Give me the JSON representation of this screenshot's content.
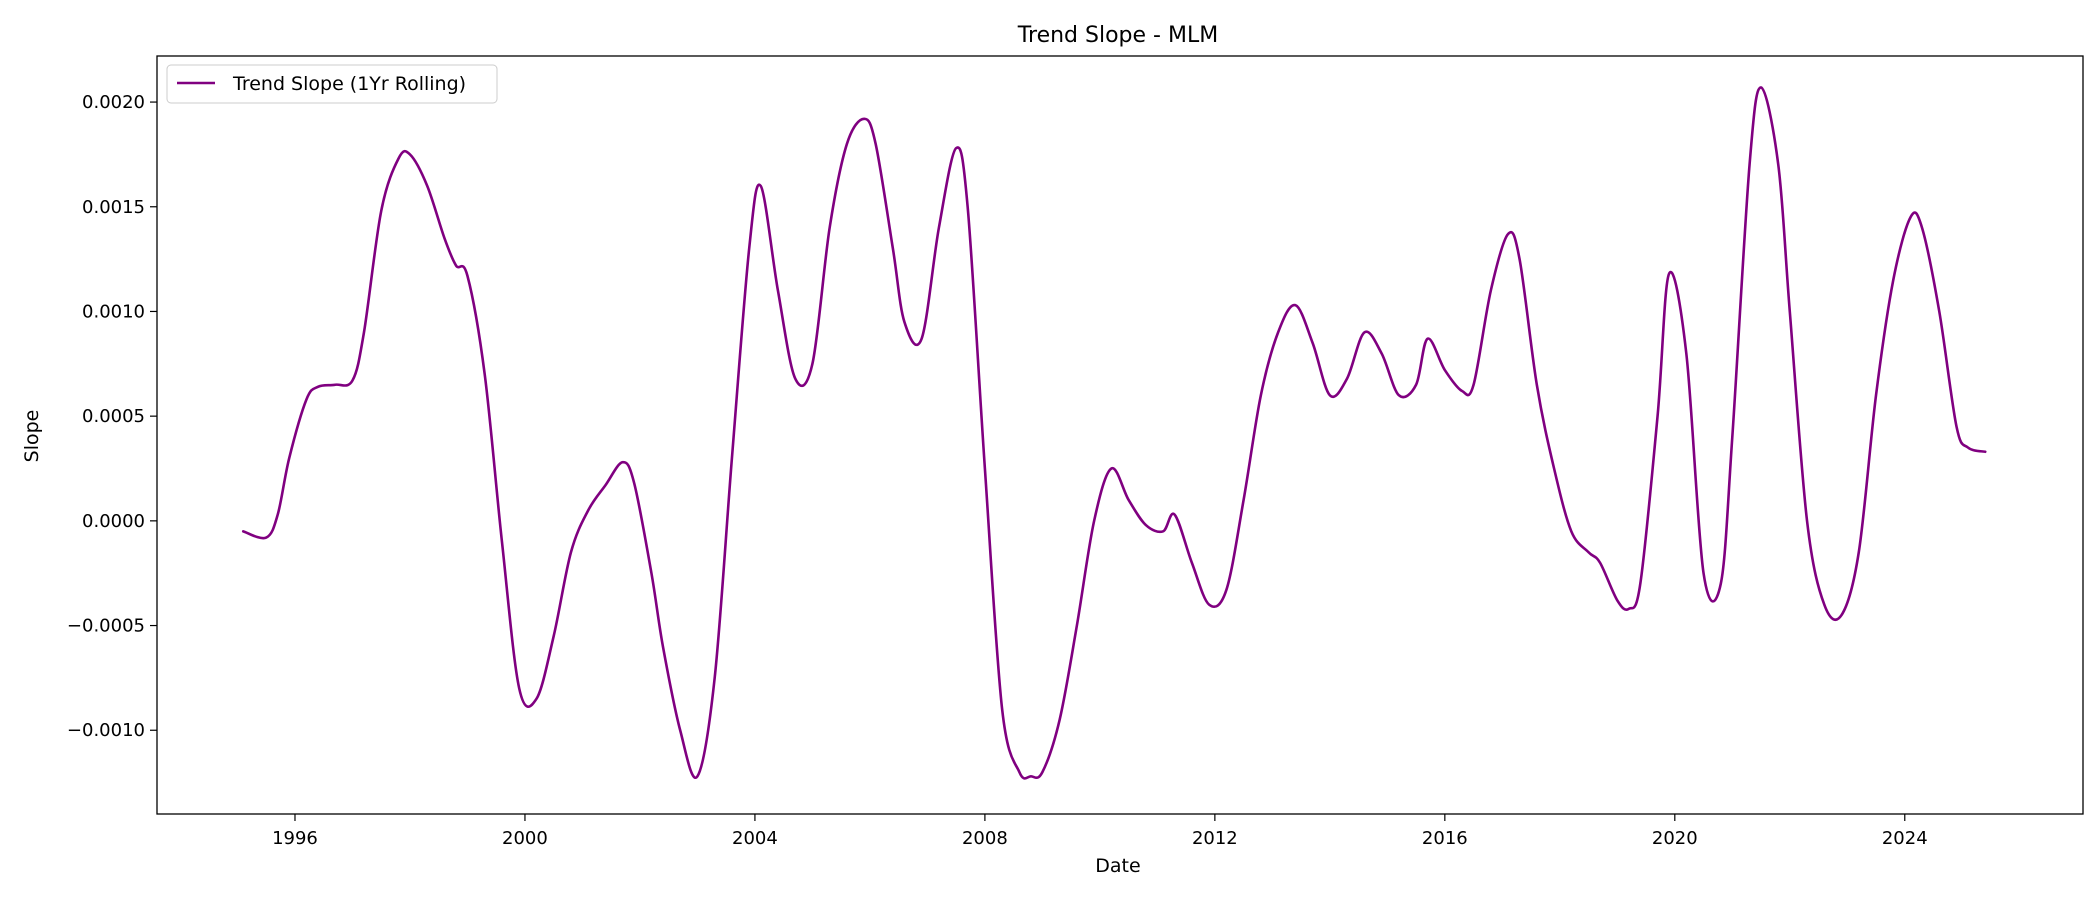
{
  "chart_data": {
    "type": "line",
    "title": "Trend Slope - MLM",
    "xlabel": "Date",
    "ylabel": "Slope",
    "xlim": [
      1993.6,
      2027.1
    ],
    "ylim": [
      -0.0014,
      0.00222
    ],
    "x_ticks": [
      1996,
      2000,
      2004,
      2008,
      2012,
      2016,
      2020,
      2024
    ],
    "x_tick_labels": [
      "1996",
      "2000",
      "2004",
      "2008",
      "2012",
      "2016",
      "2020",
      "2024"
    ],
    "y_ticks": [
      -0.001,
      -0.0005,
      0.0,
      0.0005,
      0.001,
      0.0015,
      0.002
    ],
    "y_tick_labels": [
      "−0.0010",
      "−0.0005",
      "0.0000",
      "0.0005",
      "0.0010",
      "0.0015",
      "0.0020"
    ],
    "grid": false,
    "legend": {
      "placement": "top-left",
      "entries": [
        "Trend Slope (1Yr Rolling)"
      ]
    },
    "series": [
      {
        "name": "Trend Slope (1Yr Rolling)",
        "color": "#800080",
        "x": [
          1995.1,
          1995.5,
          1995.7,
          1995.9,
          1996.2,
          1996.4,
          1996.7,
          1997.0,
          1997.2,
          1997.5,
          1997.8,
          1998.0,
          1998.3,
          1998.6,
          1998.8,
          1999.0,
          1999.3,
          1999.6,
          1999.9,
          2000.2,
          2000.5,
          2000.8,
          2001.1,
          2001.4,
          2001.7,
          2001.9,
          2002.2,
          2002.4,
          2002.7,
          2003.0,
          2003.3,
          2003.6,
          2003.9,
          2004.1,
          2004.4,
          2004.7,
          2005.0,
          2005.3,
          2005.6,
          2005.9,
          2006.1,
          2006.4,
          2006.6,
          2006.9,
          2007.2,
          2007.5,
          2007.7,
          2008.0,
          2008.3,
          2008.6,
          2008.8,
          2009.0,
          2009.3,
          2009.6,
          2009.9,
          2010.2,
          2010.5,
          2010.8,
          2011.1,
          2011.3,
          2011.6,
          2011.9,
          2012.2,
          2012.5,
          2012.8,
          2013.1,
          2013.4,
          2013.7,
          2014.0,
          2014.3,
          2014.6,
          2014.9,
          2015.2,
          2015.5,
          2015.7,
          2016.0,
          2016.3,
          2016.5,
          2016.8,
          2017.1,
          2017.3,
          2017.6,
          2017.9,
          2018.2,
          2018.5,
          2018.7,
          2019.0,
          2019.2,
          2019.4,
          2019.7,
          2019.9,
          2020.2,
          2020.5,
          2020.8,
          2021.0,
          2021.3,
          2021.5,
          2021.8,
          2022.0,
          2022.3,
          2022.6,
          2022.9,
          2023.2,
          2023.5,
          2023.8,
          2024.1,
          2024.3,
          2024.6,
          2024.9,
          2025.1,
          2025.4
        ],
        "y": [
          -5e-05,
          -8e-05,
          3e-05,
          0.0003,
          0.00058,
          0.00064,
          0.00065,
          0.00067,
          0.0009,
          0.00148,
          0.00173,
          0.00175,
          0.0016,
          0.00135,
          0.00122,
          0.00117,
          0.0007,
          -0.0001,
          -0.0008,
          -0.00085,
          -0.00055,
          -0.00015,
          5e-05,
          0.00017,
          0.00028,
          0.00018,
          -0.00025,
          -0.0006,
          -0.001,
          -0.00122,
          -0.00075,
          0.0003,
          0.0013,
          0.0016,
          0.0011,
          0.00068,
          0.00075,
          0.0014,
          0.0018,
          0.00192,
          0.0018,
          0.0013,
          0.00095,
          0.00087,
          0.0014,
          0.00178,
          0.0015,
          0.00025,
          -0.0009,
          -0.0012,
          -0.00122,
          -0.0012,
          -0.00095,
          -0.0005,
          0.0,
          0.00025,
          0.0001,
          -2e-05,
          -5e-05,
          3e-05,
          -0.0002,
          -0.0004,
          -0.00033,
          0.0001,
          0.0006,
          0.0009,
          0.00103,
          0.00085,
          0.0006,
          0.00068,
          0.0009,
          0.0008,
          0.0006,
          0.00065,
          0.00087,
          0.00072,
          0.00062,
          0.00065,
          0.0011,
          0.00137,
          0.00125,
          0.00065,
          0.00025,
          -5e-05,
          -0.00015,
          -0.0002,
          -0.00038,
          -0.00042,
          -0.0003,
          0.0005,
          0.00118,
          0.0008,
          -0.00025,
          -0.0003,
          0.0004,
          0.0017,
          0.00207,
          0.0017,
          0.001,
          0.0,
          -0.0004,
          -0.00045,
          -0.00015,
          0.0006,
          0.00115,
          0.00145,
          0.0014,
          0.001,
          0.00045,
          0.00035,
          0.00033
        ]
      }
    ]
  }
}
